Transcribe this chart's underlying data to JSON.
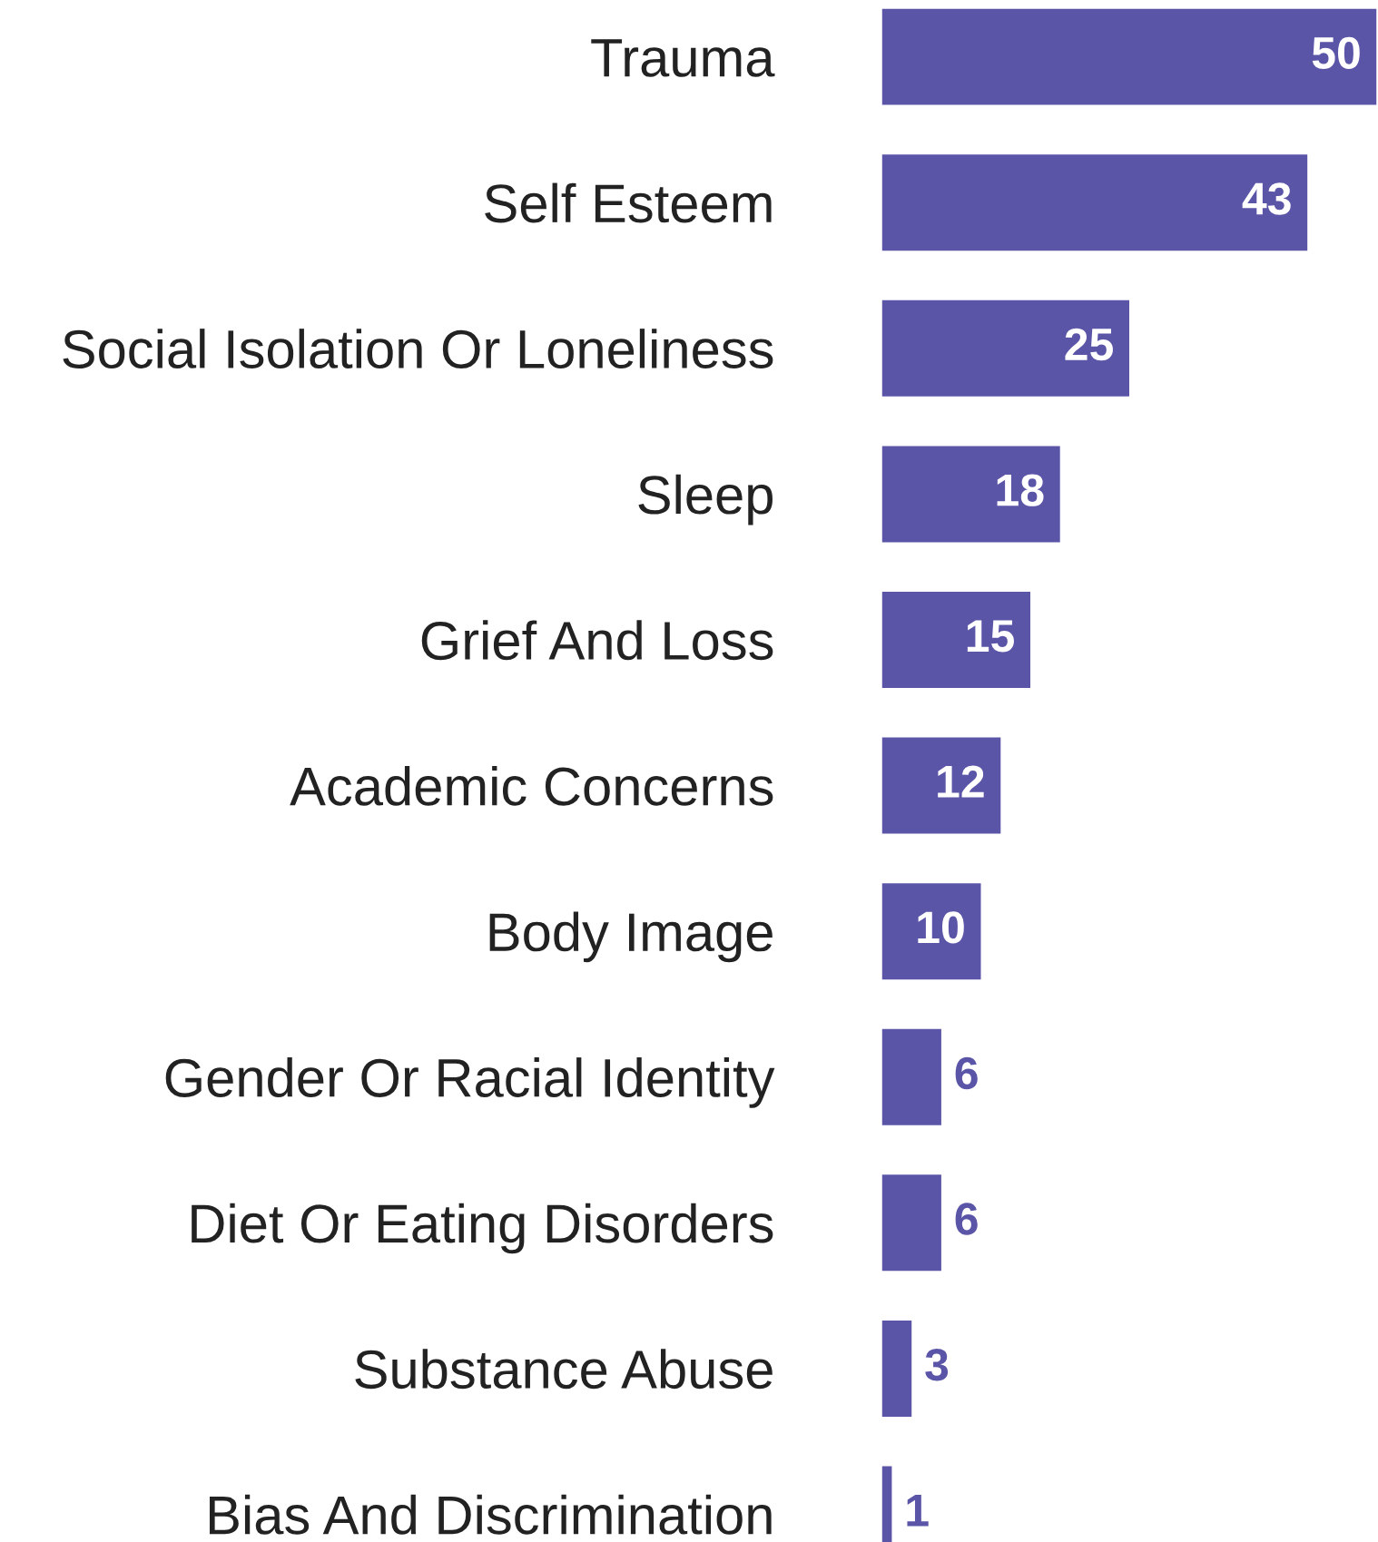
{
  "chart_data": {
    "type": "bar",
    "orientation": "horizontal",
    "categories": [
      "Trauma",
      "Self Esteem",
      "Social Isolation Or Loneliness",
      "Sleep",
      "Grief And Loss",
      "Academic Concerns",
      "Body Image",
      "Gender Or Racial Identity",
      "Diet Or Eating Disorders",
      "Substance Abuse",
      "Bias And Discrimination"
    ],
    "values": [
      50,
      43,
      25,
      18,
      15,
      12,
      10,
      6,
      6,
      3,
      1
    ],
    "color": "#5b55a8",
    "xlim": [
      0,
      50
    ],
    "data_labels": true,
    "grid": false,
    "tick_labels": "y"
  }
}
